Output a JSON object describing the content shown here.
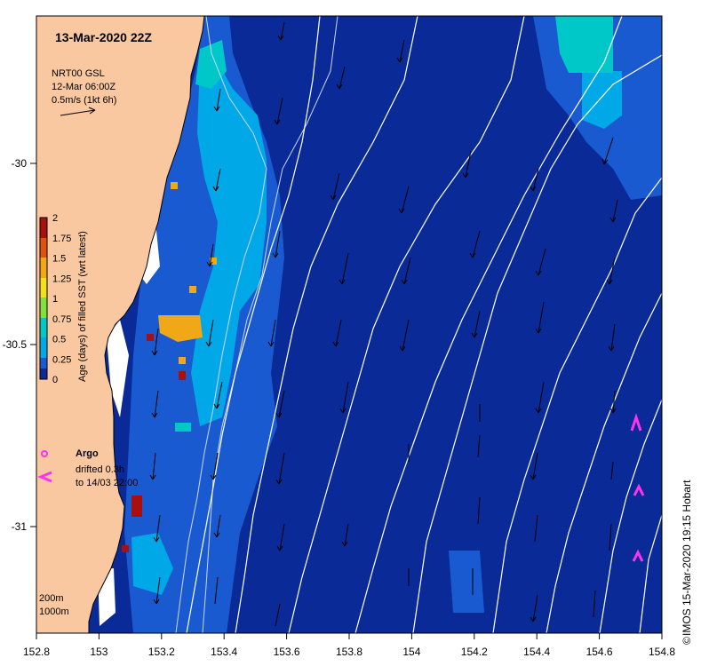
{
  "title": "13-Mar-2020 22Z",
  "legend": {
    "line1": "NRT00 GSL",
    "line2": "12-Mar 06:00Z",
    "line3": "0.5m/s (1kt 6h)"
  },
  "colorbar": {
    "label": "Age (days) of filled SST (wrt latest)",
    "ticks": [
      "2",
      "1.75",
      "1.5",
      "1.25",
      "1",
      "0.75",
      "0.5",
      "0.25",
      "0"
    ]
  },
  "argo": {
    "label": "Argo",
    "text1": "drifted 0.3h",
    "text2": "to 14/03 22:00"
  },
  "depth": {
    "d1": "200m",
    "d2": "1000m"
  },
  "x_ticks": [
    "152.8",
    "153",
    "153.2",
    "153.4",
    "153.6",
    "153.8",
    "154",
    "154.2",
    "154.4",
    "154.6",
    "154.8"
  ],
  "y_ticks": [
    "-30",
    "-30.5",
    "-31"
  ],
  "credit": "IMOS 15-Mar-2020 19:15 Hobart",
  "colors": {
    "land": "#f9c8a0",
    "deep": "#0a2a98",
    "mid": "#1a5ad0",
    "light": "#00a8e8",
    "cyan": "#00c8c8",
    "argo": "#ff33ee"
  }
}
